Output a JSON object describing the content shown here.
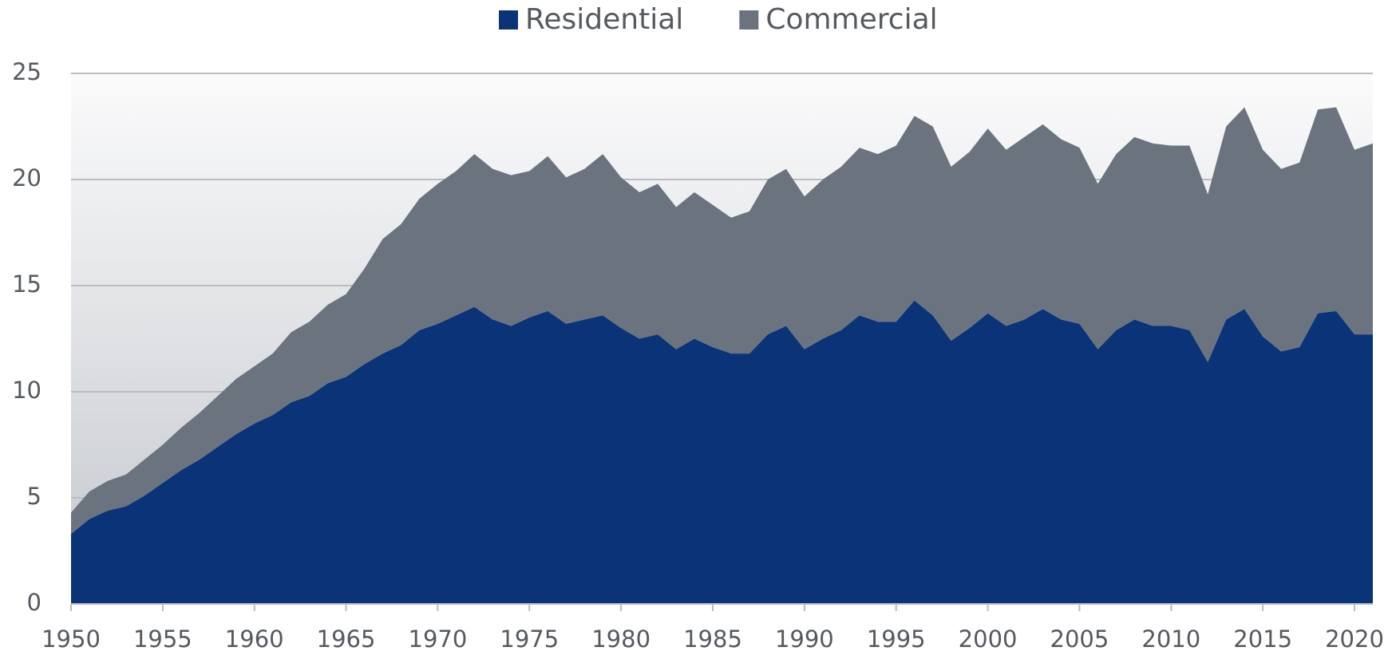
{
  "chart_data": {
    "type": "stacked_area",
    "x": [
      1950,
      1951,
      1952,
      1953,
      1954,
      1955,
      1956,
      1957,
      1958,
      1959,
      1960,
      1961,
      1962,
      1963,
      1964,
      1965,
      1966,
      1967,
      1968,
      1969,
      1970,
      1971,
      1972,
      1973,
      1974,
      1975,
      1976,
      1977,
      1978,
      1979,
      1980,
      1981,
      1982,
      1983,
      1984,
      1985,
      1986,
      1987,
      1988,
      1989,
      1990,
      1991,
      1992,
      1993,
      1994,
      1995,
      1996,
      1997,
      1998,
      1999,
      2000,
      2001,
      2002,
      2003,
      2004,
      2005,
      2006,
      2007,
      2008,
      2009,
      2010,
      2011,
      2012,
      2013,
      2014,
      2015,
      2016,
      2017,
      2018,
      2019,
      2020,
      2021
    ],
    "series": [
      {
        "name": "Residential",
        "color": "#0b3478",
        "values": [
          3.3,
          4.0,
          4.4,
          4.6,
          5.1,
          5.7,
          6.3,
          6.8,
          7.4,
          8.0,
          8.5,
          8.9,
          9.5,
          9.8,
          10.4,
          10.7,
          11.3,
          11.8,
          12.2,
          12.9,
          13.2,
          13.6,
          14.0,
          13.4,
          13.1,
          13.5,
          13.8,
          13.2,
          13.4,
          13.6,
          13.0,
          12.5,
          12.7,
          12.0,
          12.5,
          12.1,
          11.8,
          11.8,
          12.7,
          13.1,
          12.0,
          12.5,
          12.9,
          13.6,
          13.3,
          13.3,
          14.3,
          13.6,
          12.4,
          13.0,
          13.7,
          13.1,
          13.4,
          13.9,
          13.4,
          13.2,
          12.0,
          12.9,
          13.4,
          13.1,
          13.1,
          12.9,
          11.4,
          13.4,
          13.9,
          12.6,
          11.9,
          12.1,
          13.7,
          13.8,
          12.7,
          12.7
        ]
      },
      {
        "name": "Commercial",
        "color": "#6b747e",
        "values": [
          1.0,
          1.3,
          1.4,
          1.5,
          1.7,
          1.8,
          2.0,
          2.2,
          2.4,
          2.6,
          2.7,
          2.9,
          3.3,
          3.5,
          3.7,
          3.9,
          4.5,
          5.4,
          5.7,
          6.2,
          6.6,
          6.8,
          7.2,
          7.1,
          7.1,
          6.9,
          7.3,
          6.9,
          7.1,
          7.6,
          7.1,
          6.9,
          7.1,
          6.7,
          6.9,
          6.7,
          6.4,
          6.7,
          7.3,
          7.4,
          7.2,
          7.5,
          7.7,
          7.9,
          7.9,
          8.3,
          8.7,
          8.9,
          8.2,
          8.3,
          8.7,
          8.3,
          8.6,
          8.7,
          8.5,
          8.3,
          7.8,
          8.3,
          8.6,
          8.6,
          8.5,
          8.7,
          7.9,
          9.1,
          9.5,
          8.8,
          8.6,
          8.7,
          9.6,
          9.6,
          8.7,
          9.0
        ]
      }
    ],
    "xlim": [
      1950,
      2021
    ],
    "xticks": [
      1950,
      1955,
      1960,
      1965,
      1970,
      1975,
      1980,
      1985,
      1990,
      1995,
      2000,
      2005,
      2010,
      2015,
      2020
    ],
    "ylim": [
      0,
      25
    ],
    "yticks": [
      0,
      5,
      10,
      15,
      20,
      25
    ],
    "grid": true,
    "legend": "top"
  }
}
